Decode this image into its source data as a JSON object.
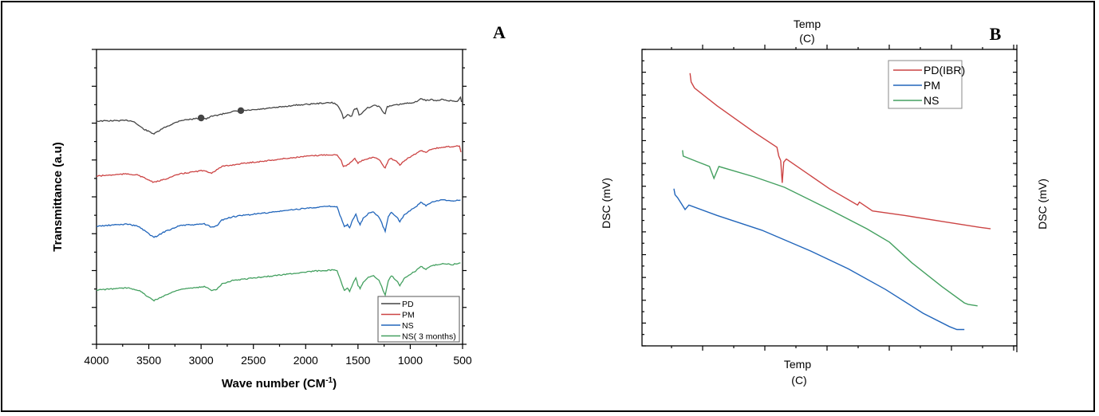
{
  "chart_data": [
    {
      "panel": "A",
      "type": "line",
      "title": "",
      "xlabel": "Wave number (CM",
      "xlabel_sup": "-1",
      "xlabel_close": ")",
      "ylabel": "Transmittance (a.u)",
      "xlim": [
        4000,
        500
      ],
      "x_reversed": true,
      "x_ticks": [
        "4000",
        "3500",
        "3000",
        "2500",
        "2000",
        "1500",
        "1000",
        "500"
      ],
      "grid": false,
      "legend_position": "bottom-right",
      "series": [
        {
          "name": "PD",
          "color": "#444444",
          "offset": 3,
          "points": [
            [
              4000,
              0.7
            ],
            [
              3900,
              0.71
            ],
            [
              3700,
              0.72
            ],
            [
              3650,
              0.7
            ],
            [
              3550,
              0.45
            ],
            [
              3450,
              0.3
            ],
            [
              3350,
              0.5
            ],
            [
              3200,
              0.72
            ],
            [
              3000,
              0.8
            ],
            [
              2950,
              0.77
            ],
            [
              2900,
              0.85
            ],
            [
              2800,
              0.92
            ],
            [
              2700,
              1.0
            ],
            [
              2500,
              1.05
            ],
            [
              2300,
              1.12
            ],
            [
              2100,
              1.2
            ],
            [
              1900,
              1.25
            ],
            [
              1750,
              1.28
            ],
            [
              1700,
              1.22
            ],
            [
              1660,
              1.0
            ],
            [
              1640,
              0.8
            ],
            [
              1600,
              0.9
            ],
            [
              1560,
              0.85
            ],
            [
              1540,
              1.05
            ],
            [
              1510,
              1.1
            ],
            [
              1490,
              0.9
            ],
            [
              1460,
              0.95
            ],
            [
              1420,
              1.1
            ],
            [
              1380,
              1.15
            ],
            [
              1340,
              1.2
            ],
            [
              1290,
              1.15
            ],
            [
              1260,
              0.98
            ],
            [
              1240,
              0.95
            ],
            [
              1220,
              1.15
            ],
            [
              1150,
              1.2
            ],
            [
              1050,
              1.25
            ],
            [
              950,
              1.3
            ],
            [
              900,
              1.4
            ],
            [
              850,
              1.35
            ],
            [
              800,
              1.38
            ],
            [
              750,
              1.33
            ],
            [
              700,
              1.38
            ],
            [
              650,
              1.35
            ],
            [
              550,
              1.32
            ],
            [
              520,
              1.45
            ],
            [
              510,
              1.3
            ]
          ],
          "markers": [
            [
              3000,
              0.8
            ],
            [
              2620,
              1.03
            ]
          ]
        },
        {
          "name": "PM",
          "color": "#cc4444",
          "offset": 2,
          "points": [
            [
              4000,
              0.55
            ],
            [
              3800,
              0.6
            ],
            [
              3700,
              0.62
            ],
            [
              3600,
              0.58
            ],
            [
              3450,
              0.35
            ],
            [
              3350,
              0.45
            ],
            [
              3200,
              0.62
            ],
            [
              3000,
              0.72
            ],
            [
              2950,
              0.7
            ],
            [
              2900,
              0.65
            ],
            [
              2850,
              0.75
            ],
            [
              2800,
              0.85
            ],
            [
              2600,
              0.95
            ],
            [
              2400,
              1.02
            ],
            [
              2200,
              1.1
            ],
            [
              2000,
              1.17
            ],
            [
              1800,
              1.22
            ],
            [
              1700,
              1.22
            ],
            [
              1660,
              1.05
            ],
            [
              1640,
              0.85
            ],
            [
              1600,
              0.9
            ],
            [
              1560,
              1.0
            ],
            [
              1530,
              1.1
            ],
            [
              1500,
              0.95
            ],
            [
              1460,
              1.05
            ],
            [
              1400,
              1.1
            ],
            [
              1350,
              1.15
            ],
            [
              1300,
              1.08
            ],
            [
              1260,
              0.88
            ],
            [
              1240,
              0.8
            ],
            [
              1210,
              1.05
            ],
            [
              1180,
              1.1
            ],
            [
              1130,
              1.0
            ],
            [
              1100,
              0.9
            ],
            [
              1050,
              1.05
            ],
            [
              1000,
              1.15
            ],
            [
              950,
              1.25
            ],
            [
              900,
              1.35
            ],
            [
              850,
              1.3
            ],
            [
              800,
              1.4
            ],
            [
              700,
              1.45
            ],
            [
              600,
              1.48
            ],
            [
              530,
              1.5
            ],
            [
              515,
              1.3
            ]
          ]
        },
        {
          "name": "NS",
          "color": "#2266bb",
          "offset": 1,
          "points": [
            [
              4000,
              0.55
            ],
            [
              3800,
              0.6
            ],
            [
              3700,
              0.62
            ],
            [
              3600,
              0.55
            ],
            [
              3450,
              0.2
            ],
            [
              3350,
              0.38
            ],
            [
              3200,
              0.58
            ],
            [
              3050,
              0.6
            ],
            [
              2970,
              0.63
            ],
            [
              2900,
              0.52
            ],
            [
              2850,
              0.56
            ],
            [
              2800,
              0.75
            ],
            [
              2700,
              0.85
            ],
            [
              2500,
              0.93
            ],
            [
              2300,
              1.0
            ],
            [
              2100,
              1.08
            ],
            [
              1900,
              1.15
            ],
            [
              1750,
              1.18
            ],
            [
              1700,
              1.15
            ],
            [
              1660,
              0.8
            ],
            [
              1630,
              0.55
            ],
            [
              1600,
              0.6
            ],
            [
              1580,
              0.5
            ],
            [
              1550,
              0.75
            ],
            [
              1520,
              0.95
            ],
            [
              1500,
              0.7
            ],
            [
              1480,
              0.6
            ],
            [
              1450,
              0.8
            ],
            [
              1400,
              0.95
            ],
            [
              1350,
              1.0
            ],
            [
              1300,
              0.85
            ],
            [
              1260,
              0.55
            ],
            [
              1240,
              0.4
            ],
            [
              1210,
              0.85
            ],
            [
              1180,
              1.0
            ],
            [
              1130,
              0.85
            ],
            [
              1100,
              0.7
            ],
            [
              1060,
              0.9
            ],
            [
              1000,
              1.05
            ],
            [
              950,
              1.15
            ],
            [
              900,
              1.3
            ],
            [
              850,
              1.2
            ],
            [
              800,
              1.3
            ],
            [
              700,
              1.38
            ],
            [
              600,
              1.35
            ],
            [
              520,
              1.38
            ]
          ]
        },
        {
          "name": "NS( 3 months)",
          "color": "#44a060",
          "offset": 0,
          "points": [
            [
              4000,
              0.55
            ],
            [
              3800,
              0.6
            ],
            [
              3700,
              0.62
            ],
            [
              3600,
              0.55
            ],
            [
              3450,
              0.22
            ],
            [
              3350,
              0.38
            ],
            [
              3200,
              0.58
            ],
            [
              3050,
              0.62
            ],
            [
              2970,
              0.66
            ],
            [
              2900,
              0.55
            ],
            [
              2850,
              0.58
            ],
            [
              2800,
              0.75
            ],
            [
              2700,
              0.85
            ],
            [
              2500,
              0.93
            ],
            [
              2300,
              1.0
            ],
            [
              2100,
              1.08
            ],
            [
              1900,
              1.15
            ],
            [
              1750,
              1.18
            ],
            [
              1700,
              1.15
            ],
            [
              1660,
              0.8
            ],
            [
              1630,
              0.55
            ],
            [
              1600,
              0.6
            ],
            [
              1580,
              0.5
            ],
            [
              1550,
              0.75
            ],
            [
              1520,
              0.95
            ],
            [
              1500,
              0.7
            ],
            [
              1480,
              0.6
            ],
            [
              1450,
              0.8
            ],
            [
              1400,
              0.95
            ],
            [
              1350,
              1.0
            ],
            [
              1300,
              0.85
            ],
            [
              1260,
              0.55
            ],
            [
              1240,
              0.4
            ],
            [
              1210,
              0.85
            ],
            [
              1180,
              1.0
            ],
            [
              1130,
              0.85
            ],
            [
              1100,
              0.7
            ],
            [
              1060,
              0.9
            ],
            [
              1000,
              1.05
            ],
            [
              950,
              1.15
            ],
            [
              900,
              1.3
            ],
            [
              850,
              1.2
            ],
            [
              800,
              1.3
            ],
            [
              700,
              1.38
            ],
            [
              600,
              1.35
            ],
            [
              520,
              1.4
            ]
          ]
        }
      ]
    },
    {
      "panel": "B",
      "type": "line",
      "title": "",
      "xlabel_line1": "Temp",
      "xlabel_line2": "(C)",
      "top_xlabel_line1": "Temp",
      "top_xlabel_line2": "(C)",
      "ylabel": "DSC (mV)",
      "right_ylabel": "DSC (mV)",
      "x_tick_labels_shown": false,
      "y_tick_labels_shown": false,
      "grid": false,
      "legend_position": "top-right",
      "series": [
        {
          "name": "PD(IBR)",
          "color": "#cc4444",
          "points": [
            [
              0.128,
              0.92
            ],
            [
              0.131,
              0.89
            ],
            [
              0.14,
              0.87
            ],
            [
              0.2,
              0.81
            ],
            [
              0.3,
              0.72
            ],
            [
              0.36,
              0.67
            ],
            [
              0.365,
              0.64
            ],
            [
              0.37,
              0.625
            ],
            [
              0.374,
              0.55
            ],
            [
              0.378,
              0.62
            ],
            [
              0.385,
              0.63
            ],
            [
              0.5,
              0.53
            ],
            [
              0.575,
              0.475
            ],
            [
              0.58,
              0.485
            ],
            [
              0.615,
              0.455
            ],
            [
              0.7,
              0.44
            ],
            [
              0.8,
              0.42
            ],
            [
              0.9,
              0.4
            ],
            [
              0.93,
              0.395
            ]
          ]
        },
        {
          "name": "PM",
          "color": "#2266bb",
          "points": [
            [
              0.085,
              0.53
            ],
            [
              0.088,
              0.51
            ],
            [
              0.095,
              0.5
            ],
            [
              0.11,
              0.47
            ],
            [
              0.115,
              0.46
            ],
            [
              0.125,
              0.475
            ],
            [
              0.2,
              0.44
            ],
            [
              0.32,
              0.39
            ],
            [
              0.45,
              0.32
            ],
            [
              0.55,
              0.26
            ],
            [
              0.65,
              0.19
            ],
            [
              0.75,
              0.11
            ],
            [
              0.82,
              0.065
            ],
            [
              0.84,
              0.055
            ],
            [
              0.86,
              0.055
            ]
          ]
        },
        {
          "name": "NS",
          "color": "#44a060",
          "points": [
            [
              0.108,
              0.66
            ],
            [
              0.11,
              0.64
            ],
            [
              0.15,
              0.62
            ],
            [
              0.18,
              0.605
            ],
            [
              0.192,
              0.565
            ],
            [
              0.205,
              0.605
            ],
            [
              0.3,
              0.57
            ],
            [
              0.38,
              0.535
            ],
            [
              0.5,
              0.46
            ],
            [
              0.6,
              0.395
            ],
            [
              0.66,
              0.35
            ],
            [
              0.72,
              0.28
            ],
            [
              0.8,
              0.2
            ],
            [
              0.86,
              0.145
            ],
            [
              0.87,
              0.14
            ],
            [
              0.895,
              0.135
            ]
          ]
        }
      ]
    }
  ],
  "panels": {
    "a_letter": "A",
    "b_letter": "B"
  }
}
